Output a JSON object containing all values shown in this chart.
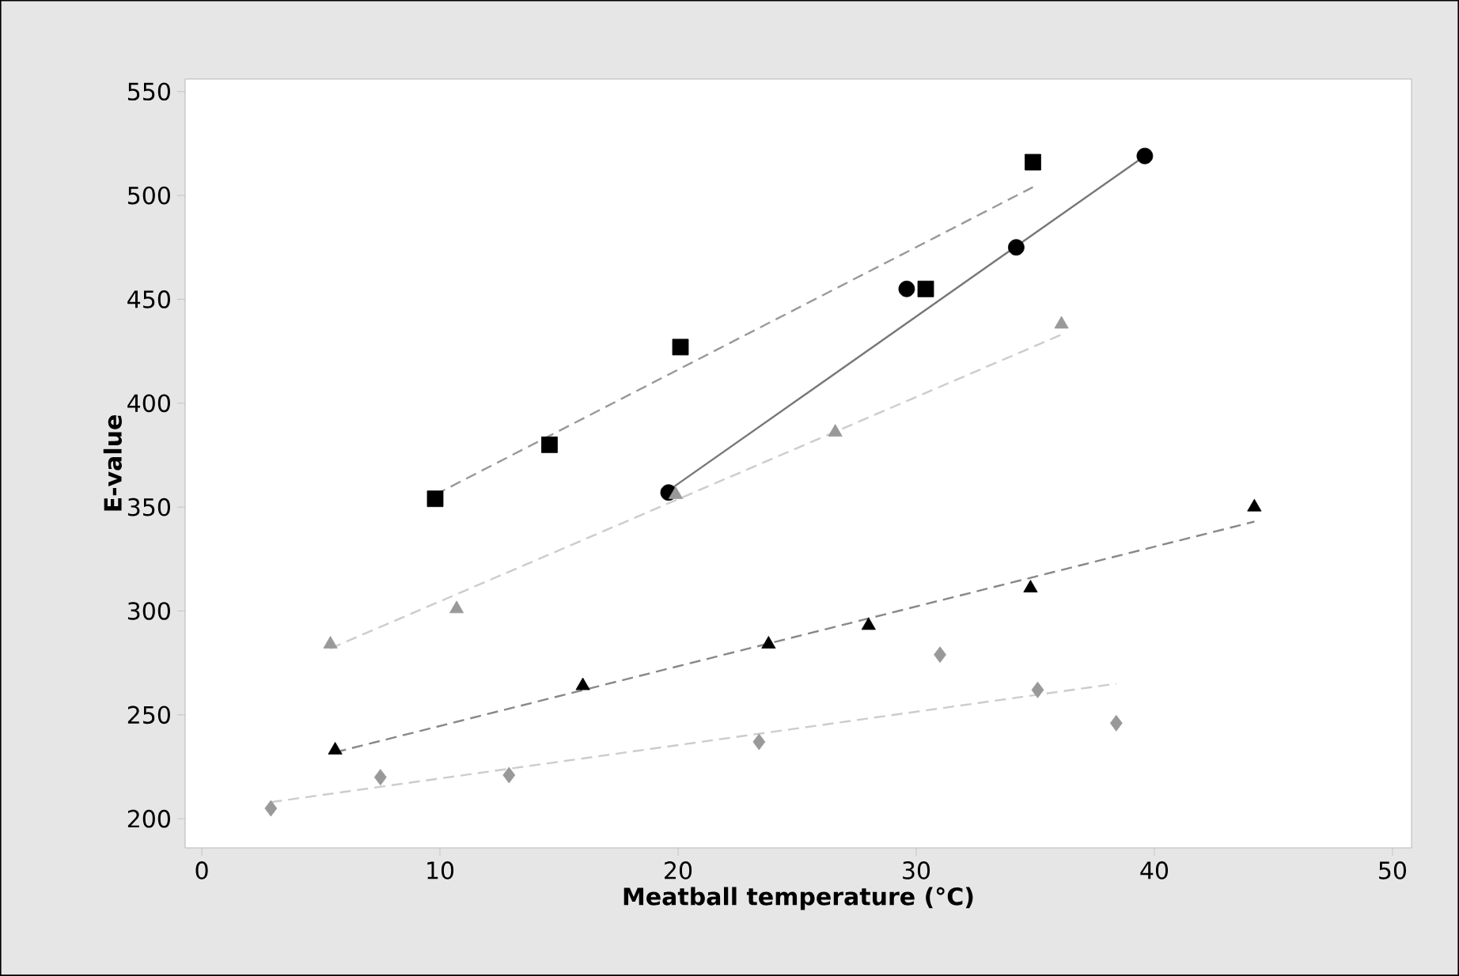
{
  "chart_data": {
    "type": "scatter",
    "xlabel": "Meatball temperature (°C)",
    "ylabel": "E-value",
    "xlim": [
      -0.7,
      50.8
    ],
    "ylim": [
      186,
      556
    ],
    "xticks": [
      0,
      10,
      20,
      30,
      40,
      50
    ],
    "yticks": [
      200,
      250,
      300,
      350,
      400,
      450,
      500,
      550
    ],
    "series": [
      {
        "marker": "square",
        "color": "#000000",
        "x": [
          9.8,
          14.6,
          20.1,
          30.4,
          34.9
        ],
        "values": [
          354,
          380,
          427,
          455,
          516
        ]
      },
      {
        "marker": "circle",
        "color": "#000000",
        "x": [
          19.6,
          29.6,
          34.2,
          39.6
        ],
        "values": [
          357,
          455,
          475,
          519
        ]
      },
      {
        "marker": "triangle",
        "color": "#999999",
        "x": [
          5.4,
          10.7,
          19.9,
          26.6,
          36.1
        ],
        "values": [
          284,
          301,
          356,
          386,
          438
        ]
      },
      {
        "marker": "triangle",
        "color": "#000000",
        "x": [
          5.6,
          16.0,
          23.8,
          28.0,
          34.8,
          44.2
        ],
        "values": [
          233,
          264,
          284,
          293,
          311,
          350
        ]
      },
      {
        "marker": "diamond",
        "color": "#999999",
        "x": [
          2.9,
          7.5,
          12.9,
          23.4,
          31.0,
          35.1,
          38.4
        ],
        "values": [
          205,
          220,
          221,
          237,
          279,
          262,
          246
        ]
      },
      {
        "type": "line",
        "line_style": "dashed",
        "color": "#999999",
        "x": [
          9.8,
          34.9
        ],
        "values": [
          356,
          504
        ]
      },
      {
        "type": "line",
        "line_style": "solid",
        "color": "#777777",
        "x": [
          19.6,
          39.6
        ],
        "values": [
          358,
          519
        ]
      },
      {
        "type": "line",
        "line_style": "dashed",
        "color": "#cccccc",
        "x": [
          5.4,
          36.1
        ],
        "values": [
          282,
          433
        ]
      },
      {
        "type": "line",
        "line_style": "dashed",
        "color": "#888888",
        "x": [
          5.6,
          44.2
        ],
        "values": [
          232,
          343
        ]
      },
      {
        "type": "line",
        "line_style": "dashed",
        "color": "#cccccc",
        "x": [
          2.9,
          38.4
        ],
        "values": [
          208,
          265
        ]
      }
    ]
  }
}
